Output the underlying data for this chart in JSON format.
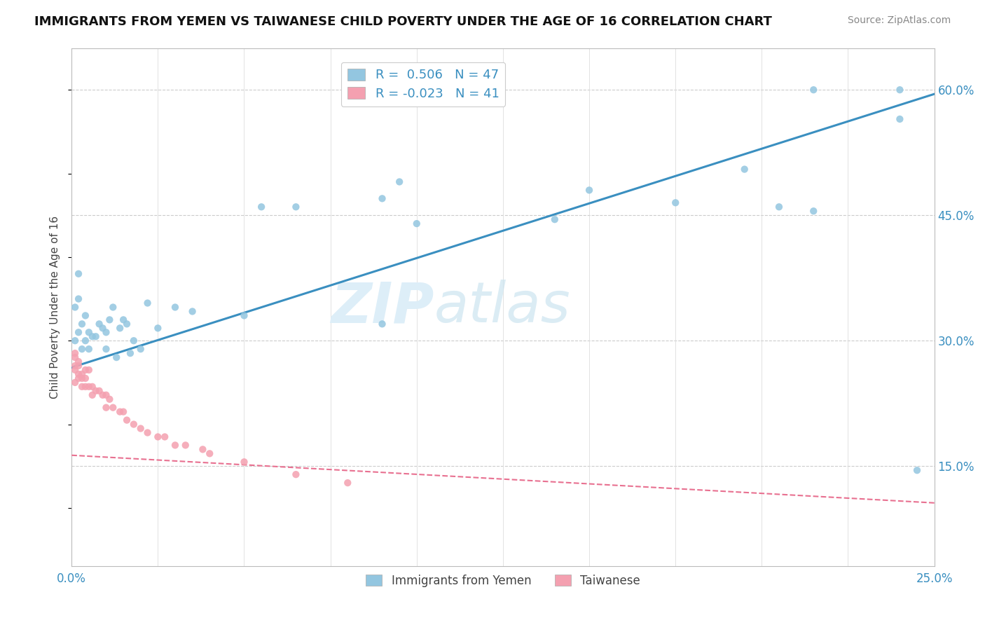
{
  "title": "IMMIGRANTS FROM YEMEN VS TAIWANESE CHILD POVERTY UNDER THE AGE OF 16 CORRELATION CHART",
  "source": "Source: ZipAtlas.com",
  "ylabel": "Child Poverty Under the Age of 16",
  "xlim": [
    0.0,
    0.25
  ],
  "ylim": [
    0.03,
    0.65
  ],
  "xticks": [
    0.0,
    0.025,
    0.05,
    0.075,
    0.1,
    0.125,
    0.15,
    0.175,
    0.2,
    0.225,
    0.25
  ],
  "yticks_right": [
    0.15,
    0.3,
    0.45,
    0.6
  ],
  "ytick_right_labels": [
    "15.0%",
    "30.0%",
    "45.0%",
    "60.0%"
  ],
  "blue_color": "#93C6E0",
  "pink_color": "#F4A0B0",
  "blue_line_color": "#3A8FC0",
  "pink_line_color": "#E87090",
  "R_blue": 0.506,
  "N_blue": 47,
  "R_pink": -0.023,
  "N_pink": 41,
  "yemen_x": [
    0.001,
    0.001,
    0.002,
    0.002,
    0.002,
    0.003,
    0.003,
    0.004,
    0.004,
    0.005,
    0.005,
    0.006,
    0.007,
    0.008,
    0.009,
    0.01,
    0.01,
    0.011,
    0.012,
    0.013,
    0.014,
    0.015,
    0.016,
    0.017,
    0.018,
    0.02,
    0.022,
    0.025,
    0.03,
    0.035,
    0.05,
    0.055,
    0.065,
    0.09,
    0.095,
    0.1,
    0.14,
    0.15,
    0.175,
    0.195,
    0.205,
    0.215,
    0.215,
    0.24,
    0.24,
    0.245,
    0.09
  ],
  "yemen_y": [
    0.3,
    0.34,
    0.31,
    0.35,
    0.38,
    0.29,
    0.32,
    0.3,
    0.33,
    0.29,
    0.31,
    0.305,
    0.305,
    0.32,
    0.315,
    0.29,
    0.31,
    0.325,
    0.34,
    0.28,
    0.315,
    0.325,
    0.32,
    0.285,
    0.3,
    0.29,
    0.345,
    0.315,
    0.34,
    0.335,
    0.33,
    0.46,
    0.46,
    0.47,
    0.49,
    0.44,
    0.445,
    0.48,
    0.465,
    0.505,
    0.46,
    0.6,
    0.455,
    0.565,
    0.6,
    0.145,
    0.32
  ],
  "taiwanese_x": [
    0.001,
    0.001,
    0.001,
    0.001,
    0.001,
    0.002,
    0.002,
    0.002,
    0.002,
    0.003,
    0.003,
    0.003,
    0.004,
    0.004,
    0.004,
    0.005,
    0.005,
    0.006,
    0.006,
    0.007,
    0.008,
    0.009,
    0.01,
    0.01,
    0.011,
    0.012,
    0.014,
    0.015,
    0.016,
    0.018,
    0.02,
    0.022,
    0.025,
    0.027,
    0.03,
    0.033,
    0.038,
    0.04,
    0.05,
    0.065,
    0.08
  ],
  "taiwanese_y": [
    0.27,
    0.285,
    0.25,
    0.265,
    0.28,
    0.255,
    0.27,
    0.275,
    0.26,
    0.245,
    0.255,
    0.26,
    0.245,
    0.255,
    0.265,
    0.245,
    0.265,
    0.245,
    0.235,
    0.24,
    0.24,
    0.235,
    0.22,
    0.235,
    0.23,
    0.22,
    0.215,
    0.215,
    0.205,
    0.2,
    0.195,
    0.19,
    0.185,
    0.185,
    0.175,
    0.175,
    0.17,
    0.165,
    0.155,
    0.14,
    0.13
  ]
}
